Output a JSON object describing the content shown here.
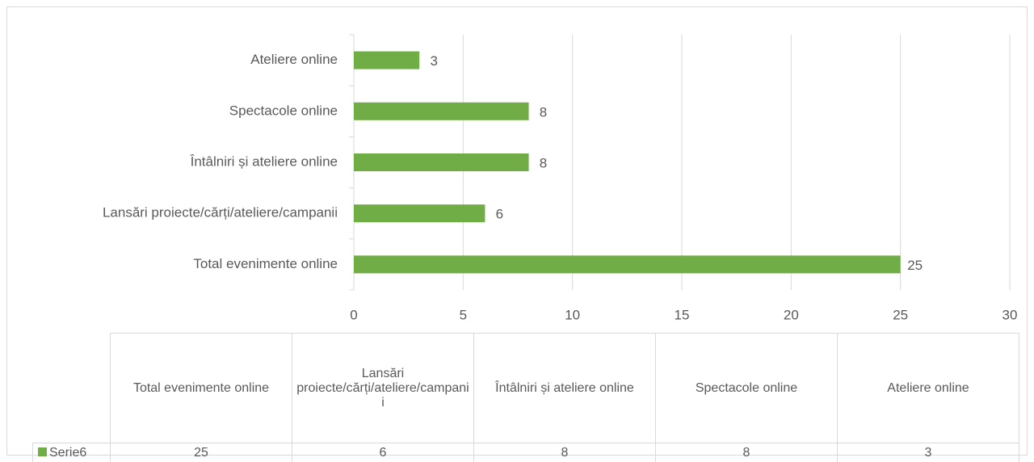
{
  "chart_data": {
    "type": "bar",
    "orientation": "horizontal",
    "categories": [
      "Total evenimente online",
      "Lansări proiecte/cărți/ateliere/campanii",
      "Întâlniri și ateliere online",
      "Spectacole online",
      "Ateliere online"
    ],
    "series": [
      {
        "name": "Serie6",
        "color": "#70ad47",
        "values": [
          25,
          6,
          8,
          8,
          3
        ]
      }
    ],
    "xlim": [
      0,
      30
    ],
    "xticks": [
      0,
      5,
      10,
      15,
      20,
      25,
      30
    ],
    "grid": true,
    "data_table": true
  }
}
